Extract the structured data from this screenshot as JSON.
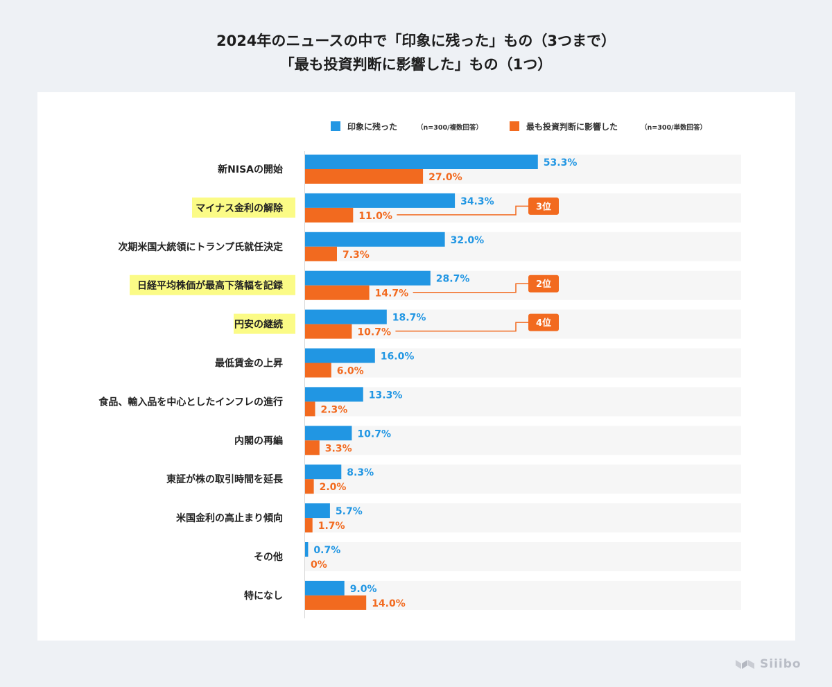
{
  "header": {
    "title_line1": "2024年のニュースの中で「印象に残った」もの（3つまで）",
    "title_line2": "「最も投資判断に影響した」もの（1つ）"
  },
  "brand": {
    "logo_text": "Siiibo"
  },
  "colors": {
    "series1": "#2196e3",
    "series2": "#f26a1f",
    "track": "#f6f6f6",
    "highlight": "#fbfb86",
    "label_text": "#222222",
    "axis": "#d6d6d6"
  },
  "chart_data": {
    "type": "bar",
    "orientation": "horizontal",
    "categories": [
      "新NISAの開始",
      "マイナス金利の解除",
      "次期米国大統領にトランプ氏就任決定",
      "日経平均株価が最高下落幅を記録",
      "円安の継続",
      "最低賃金の上昇",
      "食品、輸入品を中心としたインフレの進行",
      "内閣の再編",
      "東証が株の取引時間を延長",
      "米国金利の高止まり傾向",
      "その他",
      "特になし"
    ],
    "series": [
      {
        "name": "印象に残った",
        "note": "（n=300/複数回答）",
        "values": [
          53.3,
          34.3,
          32.0,
          28.7,
          18.7,
          16.0,
          13.3,
          10.7,
          8.3,
          5.7,
          0.7,
          9.0
        ],
        "labels": [
          "53.3%",
          "34.3%",
          "32.0%",
          "28.7%",
          "18.7%",
          "16.0%",
          "13.3%",
          "10.7%",
          "8.3%",
          "5.7%",
          "0.7%",
          "9.0%"
        ]
      },
      {
        "name": "最も投資判断に影響した",
        "note": "（n=300/単数回答）",
        "values": [
          27.0,
          11.0,
          7.3,
          14.7,
          10.7,
          6.0,
          2.3,
          3.3,
          2.0,
          1.7,
          0,
          14.0
        ],
        "labels": [
          "27.0%",
          "11.0%",
          "7.3%",
          "14.7%",
          "10.7%",
          "6.0%",
          "2.3%",
          "3.3%",
          "2.0%",
          "1.7%",
          "0%",
          "14.0%"
        ]
      }
    ],
    "highlighted_categories": [
      1,
      3,
      4
    ],
    "annotations": [
      {
        "category_index": 1,
        "text": "3位"
      },
      {
        "category_index": 3,
        "text": "2位"
      },
      {
        "category_index": 4,
        "text": "4位"
      }
    ],
    "xlim": [
      0,
      100
    ],
    "legend_position": "top",
    "grid": false
  }
}
